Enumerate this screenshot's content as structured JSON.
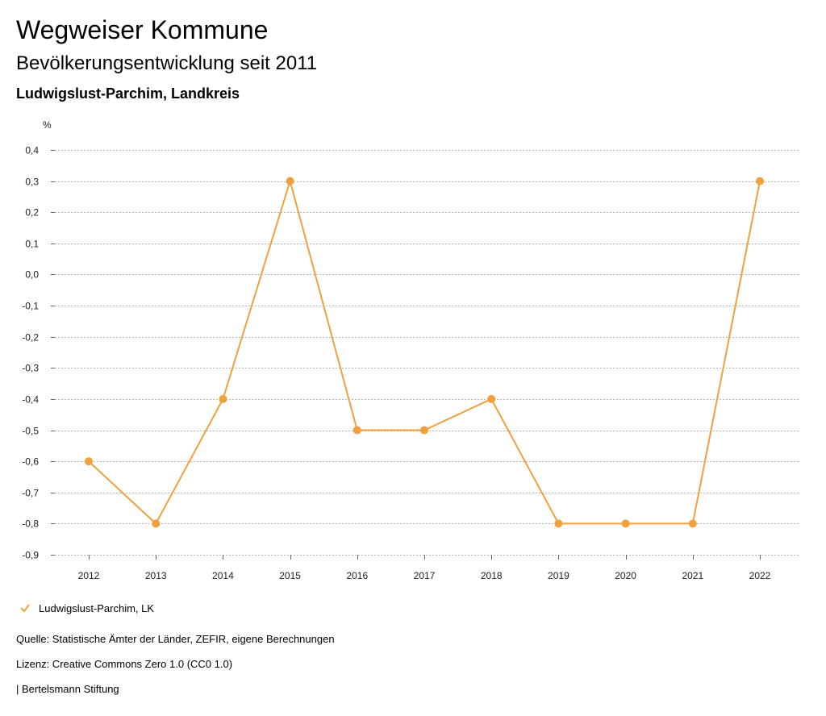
{
  "header": {
    "title": "Wegweiser Kommune",
    "subtitle": "Bevölkerungsentwicklung seit 2011",
    "region": "Ludwigslust-Parchim, Landkreis"
  },
  "footer": {
    "source": "Quelle: Statistische Ämter der Länder, ZEFIR, eigene Berechnungen",
    "license": "Lizenz: Creative Commons Zero 1.0 (CC0 1.0)",
    "credit": "| Bertelsmann Stiftung"
  },
  "colors": {
    "series": "#f0a03c",
    "grid": "#b4b4b4",
    "text": "#222222"
  },
  "chart_data": {
    "type": "line",
    "title": "",
    "xlabel": "",
    "ylabel": "%",
    "x": [
      "2012",
      "2013",
      "2014",
      "2015",
      "2016",
      "2017",
      "2018",
      "2019",
      "2020",
      "2021",
      "2022"
    ],
    "series": [
      {
        "name": "Ludwigslust-Parchim, LK",
        "values": [
          -0.6,
          -0.8,
          -0.4,
          0.3,
          -0.5,
          -0.5,
          -0.4,
          -0.8,
          -0.8,
          -0.8,
          0.3
        ]
      }
    ],
    "ylim": [
      -0.9,
      0.4
    ],
    "yticks": [
      "0,4",
      "0,3",
      "0,2",
      "0,1",
      "0,0",
      "-0,1",
      "-0,2",
      "-0,3",
      "-0,4",
      "-0,5",
      "-0,6",
      "-0,7",
      "-0,8",
      "-0,9"
    ],
    "grid": "horizontal dotted",
    "legend": "bottom-left"
  }
}
